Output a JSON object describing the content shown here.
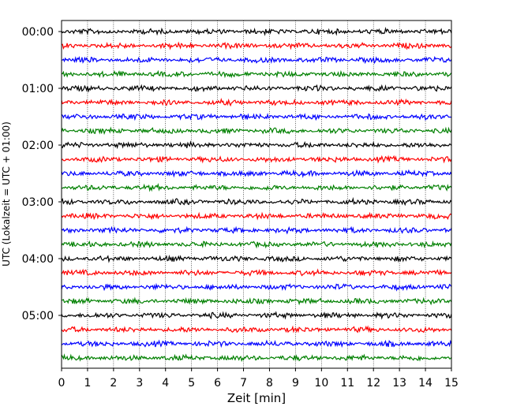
{
  "chart_data": {
    "type": "line",
    "title": "",
    "xlabel": "Zeit  [min]",
    "ylabel": "UTC (Lokalzeit = UTC + 01:00)",
    "xlim": [
      0,
      15
    ],
    "x_ticks": [
      "0",
      "1",
      "2",
      "3",
      "4",
      "5",
      "6",
      "7",
      "8",
      "9",
      "10",
      "11",
      "12",
      "13",
      "14",
      "15"
    ],
    "y_tick_labels": [
      "00:00",
      "01:00",
      "02:00",
      "03:00",
      "04:00",
      "05:00"
    ],
    "grid": {
      "x": true,
      "y": false,
      "style": "dotted"
    },
    "legend": "none",
    "trace_minutes": 15,
    "rows": [
      {
        "start": "00:00",
        "color": "#000000"
      },
      {
        "start": "00:15",
        "color": "#ff0000"
      },
      {
        "start": "00:30",
        "color": "#0000ff"
      },
      {
        "start": "00:45",
        "color": "#008000"
      },
      {
        "start": "01:00",
        "color": "#000000"
      },
      {
        "start": "01:15",
        "color": "#ff0000"
      },
      {
        "start": "01:30",
        "color": "#0000ff"
      },
      {
        "start": "01:45",
        "color": "#008000"
      },
      {
        "start": "02:00",
        "color": "#000000"
      },
      {
        "start": "02:15",
        "color": "#ff0000"
      },
      {
        "start": "02:30",
        "color": "#0000ff"
      },
      {
        "start": "02:45",
        "color": "#008000"
      },
      {
        "start": "03:00",
        "color": "#000000"
      },
      {
        "start": "03:15",
        "color": "#ff0000"
      },
      {
        "start": "03:30",
        "color": "#0000ff"
      },
      {
        "start": "03:45",
        "color": "#008000"
      },
      {
        "start": "04:00",
        "color": "#000000"
      },
      {
        "start": "04:15",
        "color": "#ff0000"
      },
      {
        "start": "04:30",
        "color": "#0000ff"
      },
      {
        "start": "04:45",
        "color": "#008000"
      },
      {
        "start": "05:00",
        "color": "#000000"
      },
      {
        "start": "05:15",
        "color": "#ff0000"
      },
      {
        "start": "05:30",
        "color": "#0000ff"
      },
      {
        "start": "05:45",
        "color": "#008000"
      }
    ]
  }
}
